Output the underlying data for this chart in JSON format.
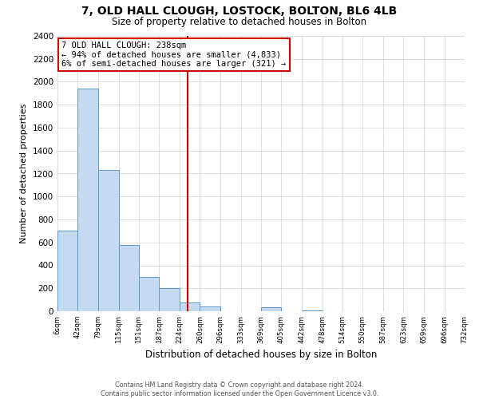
{
  "title": "7, OLD HALL CLOUGH, LOSTOCK, BOLTON, BL6 4LB",
  "subtitle": "Size of property relative to detached houses in Bolton",
  "xlabel": "Distribution of detached houses by size in Bolton",
  "ylabel": "Number of detached properties",
  "bar_color": "#c5d9f0",
  "bar_edge_color": "#5b9bd5",
  "vline_x": 238,
  "vline_color": "#cc0000",
  "annotation_title": "7 OLD HALL CLOUGH: 238sqm",
  "annotation_line1": "← 94% of detached houses are smaller (4,833)",
  "annotation_line2": "6% of semi-detached houses are larger (321) →",
  "annotation_box_color": "#cc0000",
  "bin_edges": [
    6,
    42,
    79,
    115,
    151,
    187,
    224,
    260,
    296,
    333,
    369,
    405,
    442,
    478,
    514,
    550,
    587,
    623,
    659,
    696,
    732
  ],
  "bar_heights": [
    700,
    1940,
    1230,
    575,
    300,
    200,
    80,
    45,
    0,
    0,
    35,
    0,
    10,
    0,
    0,
    0,
    0,
    0,
    0,
    0
  ],
  "ylim": [
    0,
    2400
  ],
  "yticks": [
    0,
    200,
    400,
    600,
    800,
    1000,
    1200,
    1400,
    1600,
    1800,
    2000,
    2200,
    2400
  ],
  "footer_line1": "Contains HM Land Registry data © Crown copyright and database right 2024.",
  "footer_line2": "Contains public sector information licensed under the Open Government Licence v3.0.",
  "background_color": "#ffffff"
}
